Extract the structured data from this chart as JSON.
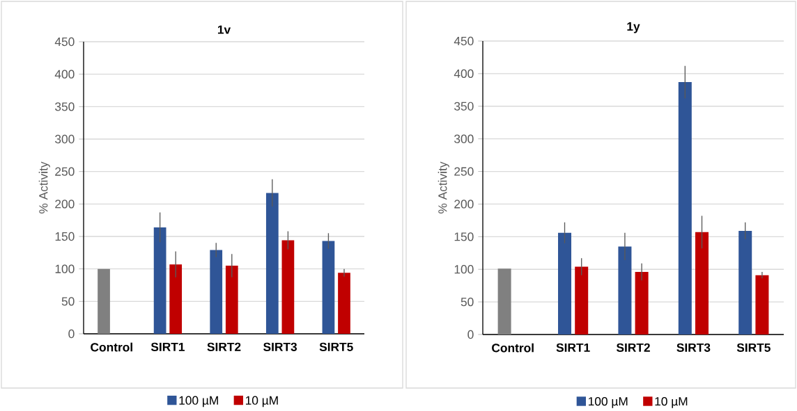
{
  "chart_data": [
    {
      "type": "bar",
      "title": "1v",
      "ylabel": "% Activity",
      "categories": [
        "Control",
        "SIRT1",
        "SIRT2",
        "SIRT3",
        "SIRT5"
      ],
      "series": [
        {
          "name": "100 µM",
          "color": "#2f5597",
          "colors": [
            "#808080",
            "#2f5597",
            "#2f5597",
            "#2f5597",
            "#2f5597"
          ],
          "values": [
            100,
            164,
            129,
            217,
            143
          ],
          "errors": [
            null,
            23,
            11,
            21,
            12
          ]
        },
        {
          "name": "10 µM",
          "color": "#c00000",
          "values": [
            null,
            107,
            105,
            144,
            94
          ],
          "errors": [
            null,
            20,
            18,
            14,
            6
          ]
        }
      ],
      "ylim": [
        0,
        450
      ],
      "yticks": [
        0,
        50,
        100,
        150,
        200,
        250,
        300,
        350,
        400,
        450
      ],
      "grid": "y",
      "legend": "bottom"
    },
    {
      "type": "bar",
      "title": "1y",
      "ylabel": "% Activity",
      "categories": [
        "Control",
        "SIRT1",
        "SIRT2",
        "SIRT3",
        "SIRT5"
      ],
      "series": [
        {
          "name": "100 µM",
          "color": "#2f5597",
          "colors": [
            "#808080",
            "#2f5597",
            "#2f5597",
            "#2f5597",
            "#2f5597"
          ],
          "values": [
            101,
            156,
            135,
            387,
            159
          ],
          "errors": [
            null,
            16,
            21,
            25,
            13
          ]
        },
        {
          "name": "10 µM",
          "color": "#c00000",
          "values": [
            null,
            104,
            96,
            157,
            91
          ],
          "errors": [
            null,
            13,
            13,
            25,
            5
          ]
        }
      ],
      "ylim": [
        0,
        450
      ],
      "yticks": [
        0,
        50,
        100,
        150,
        200,
        250,
        300,
        350,
        400,
        450
      ],
      "grid": "y",
      "legend": "bottom"
    }
  ]
}
